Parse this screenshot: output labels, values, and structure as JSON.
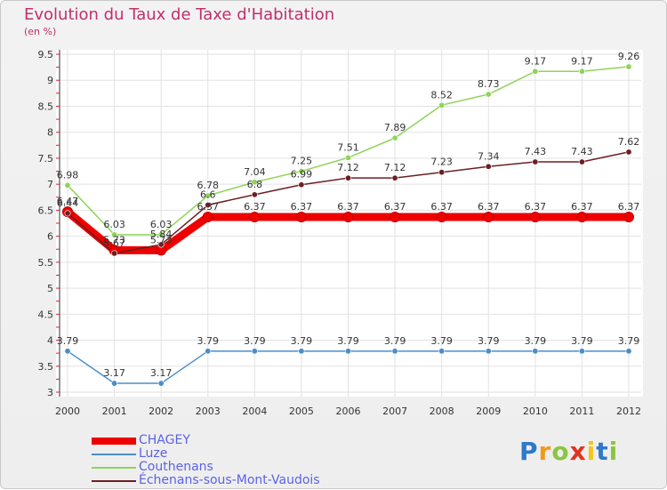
{
  "title": "Evolution du Taux de Taxe d'Habitation",
  "subtitle": "(en %)",
  "brand": "Proxiti",
  "chart_data": {
    "type": "line",
    "title": "Evolution du Taux de Taxe d'Habitation",
    "subtitle": "(en %)",
    "x": [
      "2000",
      "2001",
      "2002",
      "2003",
      "2004",
      "2005",
      "2006",
      "2007",
      "2008",
      "2009",
      "2010",
      "2011",
      "2012"
    ],
    "ylim": [
      3,
      9.5
    ],
    "yticks": [
      "3",
      "3.5",
      "4",
      "4.5",
      "5",
      "5.5",
      "6",
      "6.5",
      "7",
      "7.5",
      "8",
      "8.5",
      "9",
      "9.5"
    ],
    "grid": true,
    "legend_position": "bottom-left",
    "series": [
      {
        "name": "CHAGEY",
        "color": "#ee0000",
        "width": 9,
        "values": [
          6.47,
          5.73,
          5.73,
          6.37,
          6.37,
          6.37,
          6.37,
          6.37,
          6.37,
          6.37,
          6.37,
          6.37,
          6.37
        ],
        "labels": [
          "6.47",
          "5.73",
          "5.73",
          "6.37",
          "6.37",
          "6.37",
          "6.37",
          "6.37",
          "6.37",
          "6.37",
          "6.37",
          "6.37",
          "6.37"
        ]
      },
      {
        "name": "Luze",
        "color": "#4a8ec9",
        "width": 1.5,
        "values": [
          3.79,
          3.17,
          3.17,
          3.79,
          3.79,
          3.79,
          3.79,
          3.79,
          3.79,
          3.79,
          3.79,
          3.79,
          3.79
        ],
        "labels": [
          "3.79",
          "3.17",
          "3.17",
          "3.79",
          "3.79",
          "3.79",
          "3.79",
          "3.79",
          "3.79",
          "3.79",
          "3.79",
          "3.79",
          "3.79"
        ]
      },
      {
        "name": "Couthenans",
        "color": "#8fd45a",
        "width": 1.5,
        "values": [
          6.98,
          6.03,
          6.03,
          6.78,
          7.04,
          7.25,
          7.51,
          7.89,
          8.52,
          8.73,
          9.17,
          9.17,
          9.26
        ],
        "labels": [
          "6.98",
          "6.03",
          "6.03",
          "6.78",
          "7.04",
          "7.25",
          "7.51",
          "7.89",
          "8.52",
          "8.73",
          "9.17",
          "9.17",
          "9.26"
        ]
      },
      {
        "name": "Échenans-sous-Mont-Vaudois",
        "color": "#6b1f24",
        "width": 1.5,
        "values": [
          6.44,
          5.67,
          5.84,
          6.6,
          6.8,
          6.99,
          7.12,
          7.12,
          7.23,
          7.34,
          7.43,
          7.43,
          7.62
        ],
        "labels": [
          "6.44",
          "5.67",
          "5.84",
          "6.6",
          "6.8",
          "6.99",
          "7.12",
          "7.12",
          "7.23",
          "7.34",
          "7.43",
          "7.43",
          "7.62"
        ]
      }
    ]
  }
}
